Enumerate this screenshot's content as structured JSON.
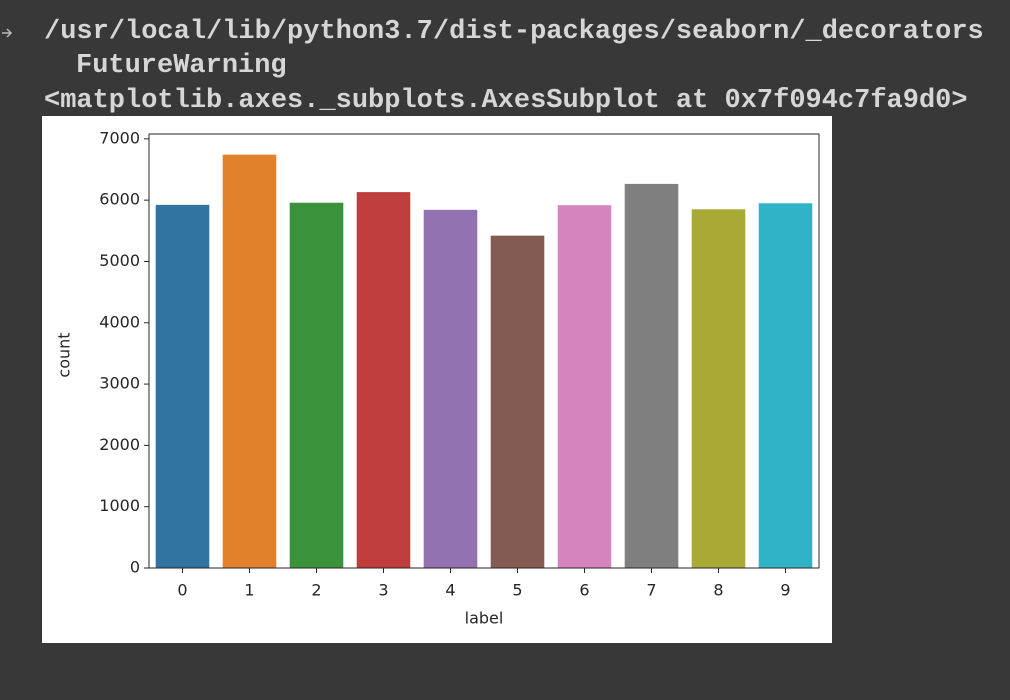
{
  "output": {
    "lines": [
      "/usr/local/lib/python3.7/dist-packages/seaborn/_decorators",
      "FutureWarning",
      "<matplotlib.axes._subplots.AxesSubplot at 0x7f094c7fa9d0>"
    ]
  },
  "chart_data": {
    "type": "bar",
    "x_label": "label",
    "y_label": "count",
    "categories": [
      "0",
      "1",
      "2",
      "3",
      "4",
      "5",
      "6",
      "7",
      "8",
      "9"
    ],
    "values": [
      5923,
      6742,
      5958,
      6131,
      5842,
      5421,
      5918,
      6265,
      5851,
      5949
    ],
    "colors": [
      "#3274a1",
      "#e1812c",
      "#3a923a",
      "#c03d3e",
      "#9372b2",
      "#845b53",
      "#d684bd",
      "#7f7f7f",
      "#a9aa35",
      "#2eb4c6"
    ],
    "ylim": [
      0,
      7079
    ],
    "yticks": [
      0,
      1000,
      2000,
      3000,
      4000,
      5000,
      6000,
      7000
    ]
  }
}
